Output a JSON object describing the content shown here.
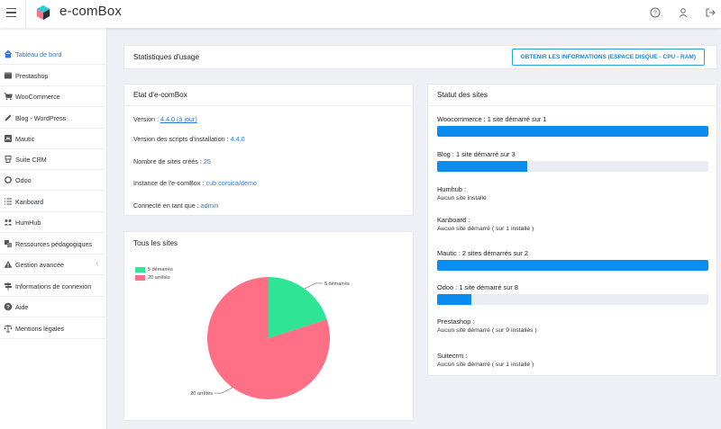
{
  "app": {
    "brand": "e-comBox",
    "colors": {
      "accent": "#2a7ade",
      "progress": "#0b8cf0",
      "started": "#2de594",
      "stopped": "#ff6f86"
    },
    "top_icons": [
      "help-icon",
      "user-icon",
      "logout-icon"
    ]
  },
  "sidebar": {
    "items": [
      {
        "label": "Tableau de bord",
        "icon": "home-icon",
        "active": true
      },
      {
        "label": "Prestashop",
        "icon": "store-icon"
      },
      {
        "label": "WooCommerce",
        "icon": "cart-icon"
      },
      {
        "label": "Blog - WordPress",
        "icon": "pencil-icon"
      },
      {
        "label": "Mautic",
        "icon": "mautic-icon"
      },
      {
        "label": "Suite CRM",
        "icon": "crm-icon"
      },
      {
        "label": "Odoo",
        "icon": "odoo-icon"
      },
      {
        "label": "Kanboard",
        "icon": "list-icon"
      },
      {
        "label": "HumHub",
        "icon": "users-icon"
      },
      {
        "label": "Ressources pédagogiques",
        "icon": "layers-icon"
      },
      {
        "label": "Gestion avancée",
        "icon": "warning-icon",
        "has_submenu": true
      },
      {
        "label": "Informations de connexion",
        "icon": "signpost-icon"
      },
      {
        "label": "Aide",
        "icon": "question-icon"
      },
      {
        "label": "Mentions légales",
        "icon": "balance-icon"
      }
    ]
  },
  "usage": {
    "title": "Statistiques d'usage",
    "button": "OBTENIR LES INFORMATIONS (ESPACE DISQUE - CPU - RAM)"
  },
  "etat": {
    "title": "Etat d'e-comBox",
    "version_label": "Version : ",
    "version_value": "4.4.0 (à jour)",
    "scripts_label": "Version des scripts d'installation : ",
    "scripts_value": "4.4.0",
    "sites_label": "Nombre de sites créés : ",
    "sites_value": "25",
    "instance_label": "Instance de l'e-comBox : ",
    "instance_value": "cub.corsica/demo",
    "user_label": "Connecté en tant que : ",
    "user_value": "admin"
  },
  "tous_sites": {
    "title": "Tous les sites",
    "chart_data": {
      "type": "pie",
      "title": "Tous les sites",
      "labels": [
        "5 démarrés",
        "20 arrêtés"
      ],
      "values": [
        5,
        20
      ],
      "colors": [
        "#2de594",
        "#ff6f86"
      ],
      "legend": "top-left"
    }
  },
  "statut": {
    "title": "Statut des sites",
    "sites": [
      {
        "title": "Woocommerce : 1 site démarré sur 1",
        "progress": 1.0,
        "sub": ""
      },
      {
        "title": "Blog : 1 site démarré sur 3",
        "progress": 0.333,
        "sub": ""
      },
      {
        "title": "Humhub :",
        "progress": null,
        "sub": "Aucun site installé"
      },
      {
        "title": "Kanboard :",
        "progress": null,
        "sub": "Aucun site démarré ( sur 1 installé )"
      },
      {
        "title": "Mautic : 2 sites démarrés sur 2",
        "progress": 1.0,
        "sub": ""
      },
      {
        "title": "Odoo : 1 site démarré sur 8",
        "progress": 0.125,
        "sub": ""
      },
      {
        "title": "Prestashop :",
        "progress": null,
        "sub": "Aucun site démarré ( sur 9 installés )"
      },
      {
        "title": "Suitecrm :",
        "progress": null,
        "sub": "Aucun site démarré ( sur 1 installé )"
      }
    ]
  }
}
